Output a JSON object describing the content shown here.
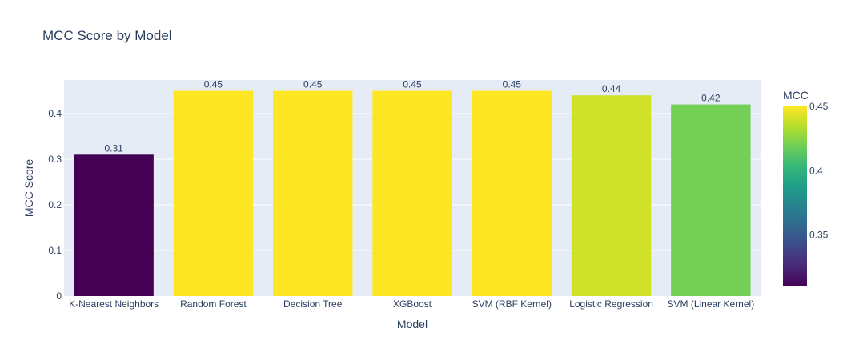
{
  "chart_data": {
    "type": "bar",
    "title": "MCC Score by Model",
    "xlabel": "Model",
    "ylabel": "MCC Score",
    "categories": [
      "K-Nearest Neighbors",
      "Random Forest",
      "Decision Tree",
      "XGBoost",
      "SVM (RBF Kernel)",
      "Logistic Regression",
      "SVM (Linear Kernel)"
    ],
    "values": [
      0.31,
      0.45,
      0.45,
      0.45,
      0.45,
      0.44,
      0.42
    ],
    "data_labels": [
      "0.31",
      "0.45",
      "0.45",
      "0.45",
      "0.45",
      "0.44",
      "0.42"
    ],
    "ylim": [
      0,
      0.4737
    ],
    "y_ticks": [
      0,
      0.1,
      0.2,
      0.3,
      0.4
    ],
    "y_tick_labels": [
      "0",
      "0.1",
      "0.2",
      "0.3",
      "0.4"
    ],
    "grid": true,
    "colorscale": "Viridis",
    "colorbar": {
      "title": "MCC",
      "range": [
        0.31,
        0.45
      ],
      "ticks": [
        0.35,
        0.4,
        0.45
      ],
      "tick_labels": [
        "0.35",
        "0.4",
        "0.45"
      ]
    },
    "plot_background": "#e5ecf6"
  }
}
